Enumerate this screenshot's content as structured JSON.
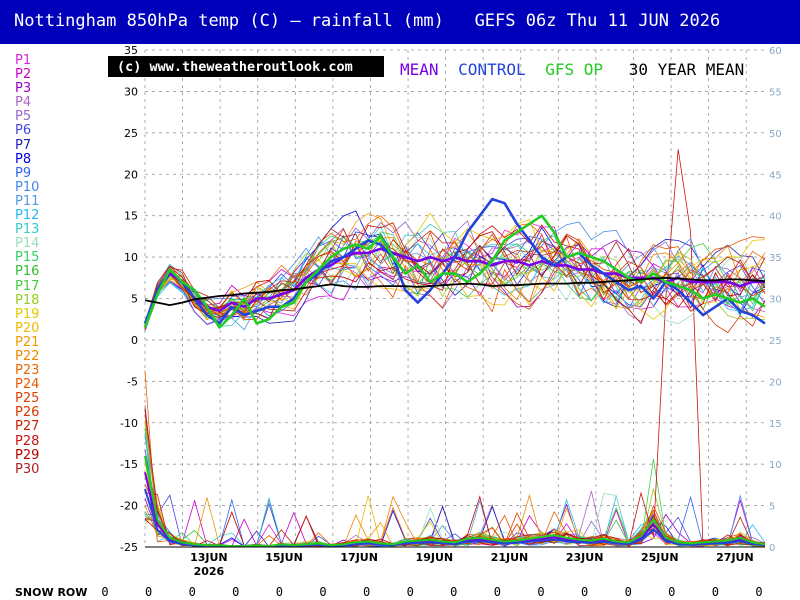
{
  "title": "Nottingham 850hPa temp (C) – rainfall (mm)   GEFS 06z Thu 11 JUN 2026",
  "copyright": "(c) www.theweatheroutlook.com",
  "legend": {
    "mean": "MEAN",
    "control": "CONTROL",
    "op": "GFS OP",
    "climate": "30 YEAR MEAN",
    "colors": {
      "mean": "#7a00e6",
      "control": "#2244dd",
      "op": "#22cc22",
      "climate": "#000000"
    }
  },
  "members": [
    "P1",
    "P2",
    "P3",
    "P4",
    "P5",
    "P6",
    "P7",
    "P8",
    "P9",
    "P10",
    "P11",
    "P12",
    "P13",
    "P14",
    "P15",
    "P16",
    "P17",
    "P18",
    "P19",
    "P20",
    "P21",
    "P22",
    "P23",
    "P24",
    "P25",
    "P26",
    "P27",
    "P28",
    "P29",
    "P30"
  ],
  "member_colors": [
    "#dd22dd",
    "#cc00cc",
    "#9900cc",
    "#aa66cc",
    "#9966cc",
    "#4444dd",
    "#2222bb",
    "#0000ee",
    "#3366ee",
    "#4488ee",
    "#5599dd",
    "#22bbee",
    "#33cccc",
    "#99ddbb",
    "#33cc66",
    "#33bb33",
    "#44cc44",
    "#99cc22",
    "#ddcc00",
    "#eebb00",
    "#ee9900",
    "#ee8800",
    "#ee6600",
    "#ee5500",
    "#dd4400",
    "#dd3300",
    "#cc2200",
    "#cc1111",
    "#bb0000",
    "#aa2222"
  ],
  "snow_row": {
    "label": "SNOW ROW",
    "values": [
      "0",
      "0",
      "0",
      "0",
      "0",
      "0",
      "0",
      "0",
      "0",
      "0",
      "0",
      "0",
      "0",
      "0",
      "0",
      "0"
    ]
  },
  "chart_data": {
    "type": "line",
    "title": "Nottingham 850hPa temp (C) – rainfall (mm)",
    "ylabel_left": "850hPa temp (C)",
    "ylabel_right": "rainfall (mm)",
    "ylim_left": [
      -25,
      35
    ],
    "ylim_right": [
      0,
      60
    ],
    "yticks_left": [
      "-25",
      "-20",
      "-15",
      "-10",
      "-5",
      "0",
      "5",
      "10",
      "15",
      "20",
      "25",
      "30",
      "35"
    ],
    "yticks_right": [
      "0",
      "5",
      "10",
      "15",
      "20",
      "25",
      "30",
      "35",
      "40",
      "45",
      "50",
      "55",
      "60"
    ],
    "x_tick_labels": [
      "13JUN",
      "15JUN",
      "17JUN",
      "19JUN",
      "21JUN",
      "23JUN",
      "25JUN",
      "27JUN"
    ],
    "x_subtitle": "2026",
    "x_range_days": [
      0,
      16.5
    ],
    "grid": "dashed",
    "legend_position": "top",
    "series": [
      {
        "name": "MEAN",
        "values": [
          1.5,
          6,
          8,
          7,
          5,
          4,
          3.5,
          4.5,
          4,
          5,
          5,
          5.5,
          6,
          7.5,
          8.5,
          9,
          10,
          10.5,
          10.5,
          11,
          10.5,
          10,
          9.5,
          10,
          9.5,
          10,
          9.5,
          9.5,
          9,
          9.5,
          9.5,
          9,
          9.5,
          9,
          9,
          8.5,
          8.5,
          8,
          8,
          7.5,
          7.5,
          7.5,
          7,
          7.5,
          7,
          7,
          7,
          7,
          6.5,
          7,
          7
        ]
      },
      {
        "name": "CONTROL",
        "values": [
          2,
          6,
          8.5,
          7,
          5,
          3,
          2,
          4,
          3,
          3.5,
          4,
          4,
          5,
          7,
          8,
          9.5,
          10,
          11,
          12,
          11.5,
          10,
          6,
          4.5,
          6,
          8,
          10,
          13,
          15,
          17,
          16.5,
          14,
          12,
          10,
          9,
          10,
          10.5,
          9,
          8,
          7,
          6,
          6.5,
          5,
          7,
          6,
          4.5,
          3,
          4,
          5,
          3.5,
          3,
          2
        ]
      },
      {
        "name": "GFS OP",
        "values": [
          1.5,
          5.5,
          8.5,
          7,
          6,
          4,
          1.5,
          3,
          5,
          2,
          2.5,
          4,
          4.5,
          7,
          8.5,
          10,
          11,
          11.5,
          11,
          12.5,
          10,
          8,
          9,
          7,
          8,
          8,
          7,
          8,
          9.5,
          12,
          13,
          14,
          15,
          13,
          10,
          10.5,
          10,
          9.5,
          8.5,
          7.5,
          7,
          8,
          7,
          6.5,
          6,
          5,
          5.5,
          5,
          4.5,
          5,
          4
        ]
      },
      {
        "name": "30 YEAR MEAN",
        "values": [
          4.8,
          4.5,
          4.2,
          4.5,
          4.9,
          5.1,
          5.3,
          5.4,
          5.6,
          5.7,
          5.8,
          6,
          6.1,
          6.3,
          6.5,
          6.7,
          6.5,
          6.4,
          6.4,
          6.5,
          6.5,
          6.5,
          6.4,
          6.5,
          6.6,
          6.7,
          6.8,
          6.7,
          6.5,
          6.6,
          6.6,
          6.7,
          6.8,
          6.8,
          6.8,
          6.9,
          6.9,
          7,
          7.1,
          7.2,
          7.3,
          7.4,
          7.5,
          7.4,
          7.3,
          7.2,
          7.2,
          7.3,
          7.3,
          7.2,
          7.1
        ]
      }
    ],
    "rainfall_mean": [
      10,
      3,
      1,
      0.5,
      0.3,
      0.2,
      0.2,
      0.1,
      0.1,
      0.2,
      0.1,
      0.3,
      0.2,
      0.3,
      0.4,
      0.2,
      0.3,
      0.5,
      0.6,
      0.4,
      0.3,
      0.6,
      0.7,
      0.8,
      0.6,
      0.5,
      0.9,
      1,
      0.8,
      0.6,
      0.7,
      0.9,
      1.1,
      1.3,
      1,
      0.8,
      0.7,
      0.9,
      0.6,
      0.5,
      1.2,
      3,
      1,
      0.5,
      0.4,
      0.5,
      0.6,
      0.7,
      1,
      0.5,
      0.3
    ]
  }
}
